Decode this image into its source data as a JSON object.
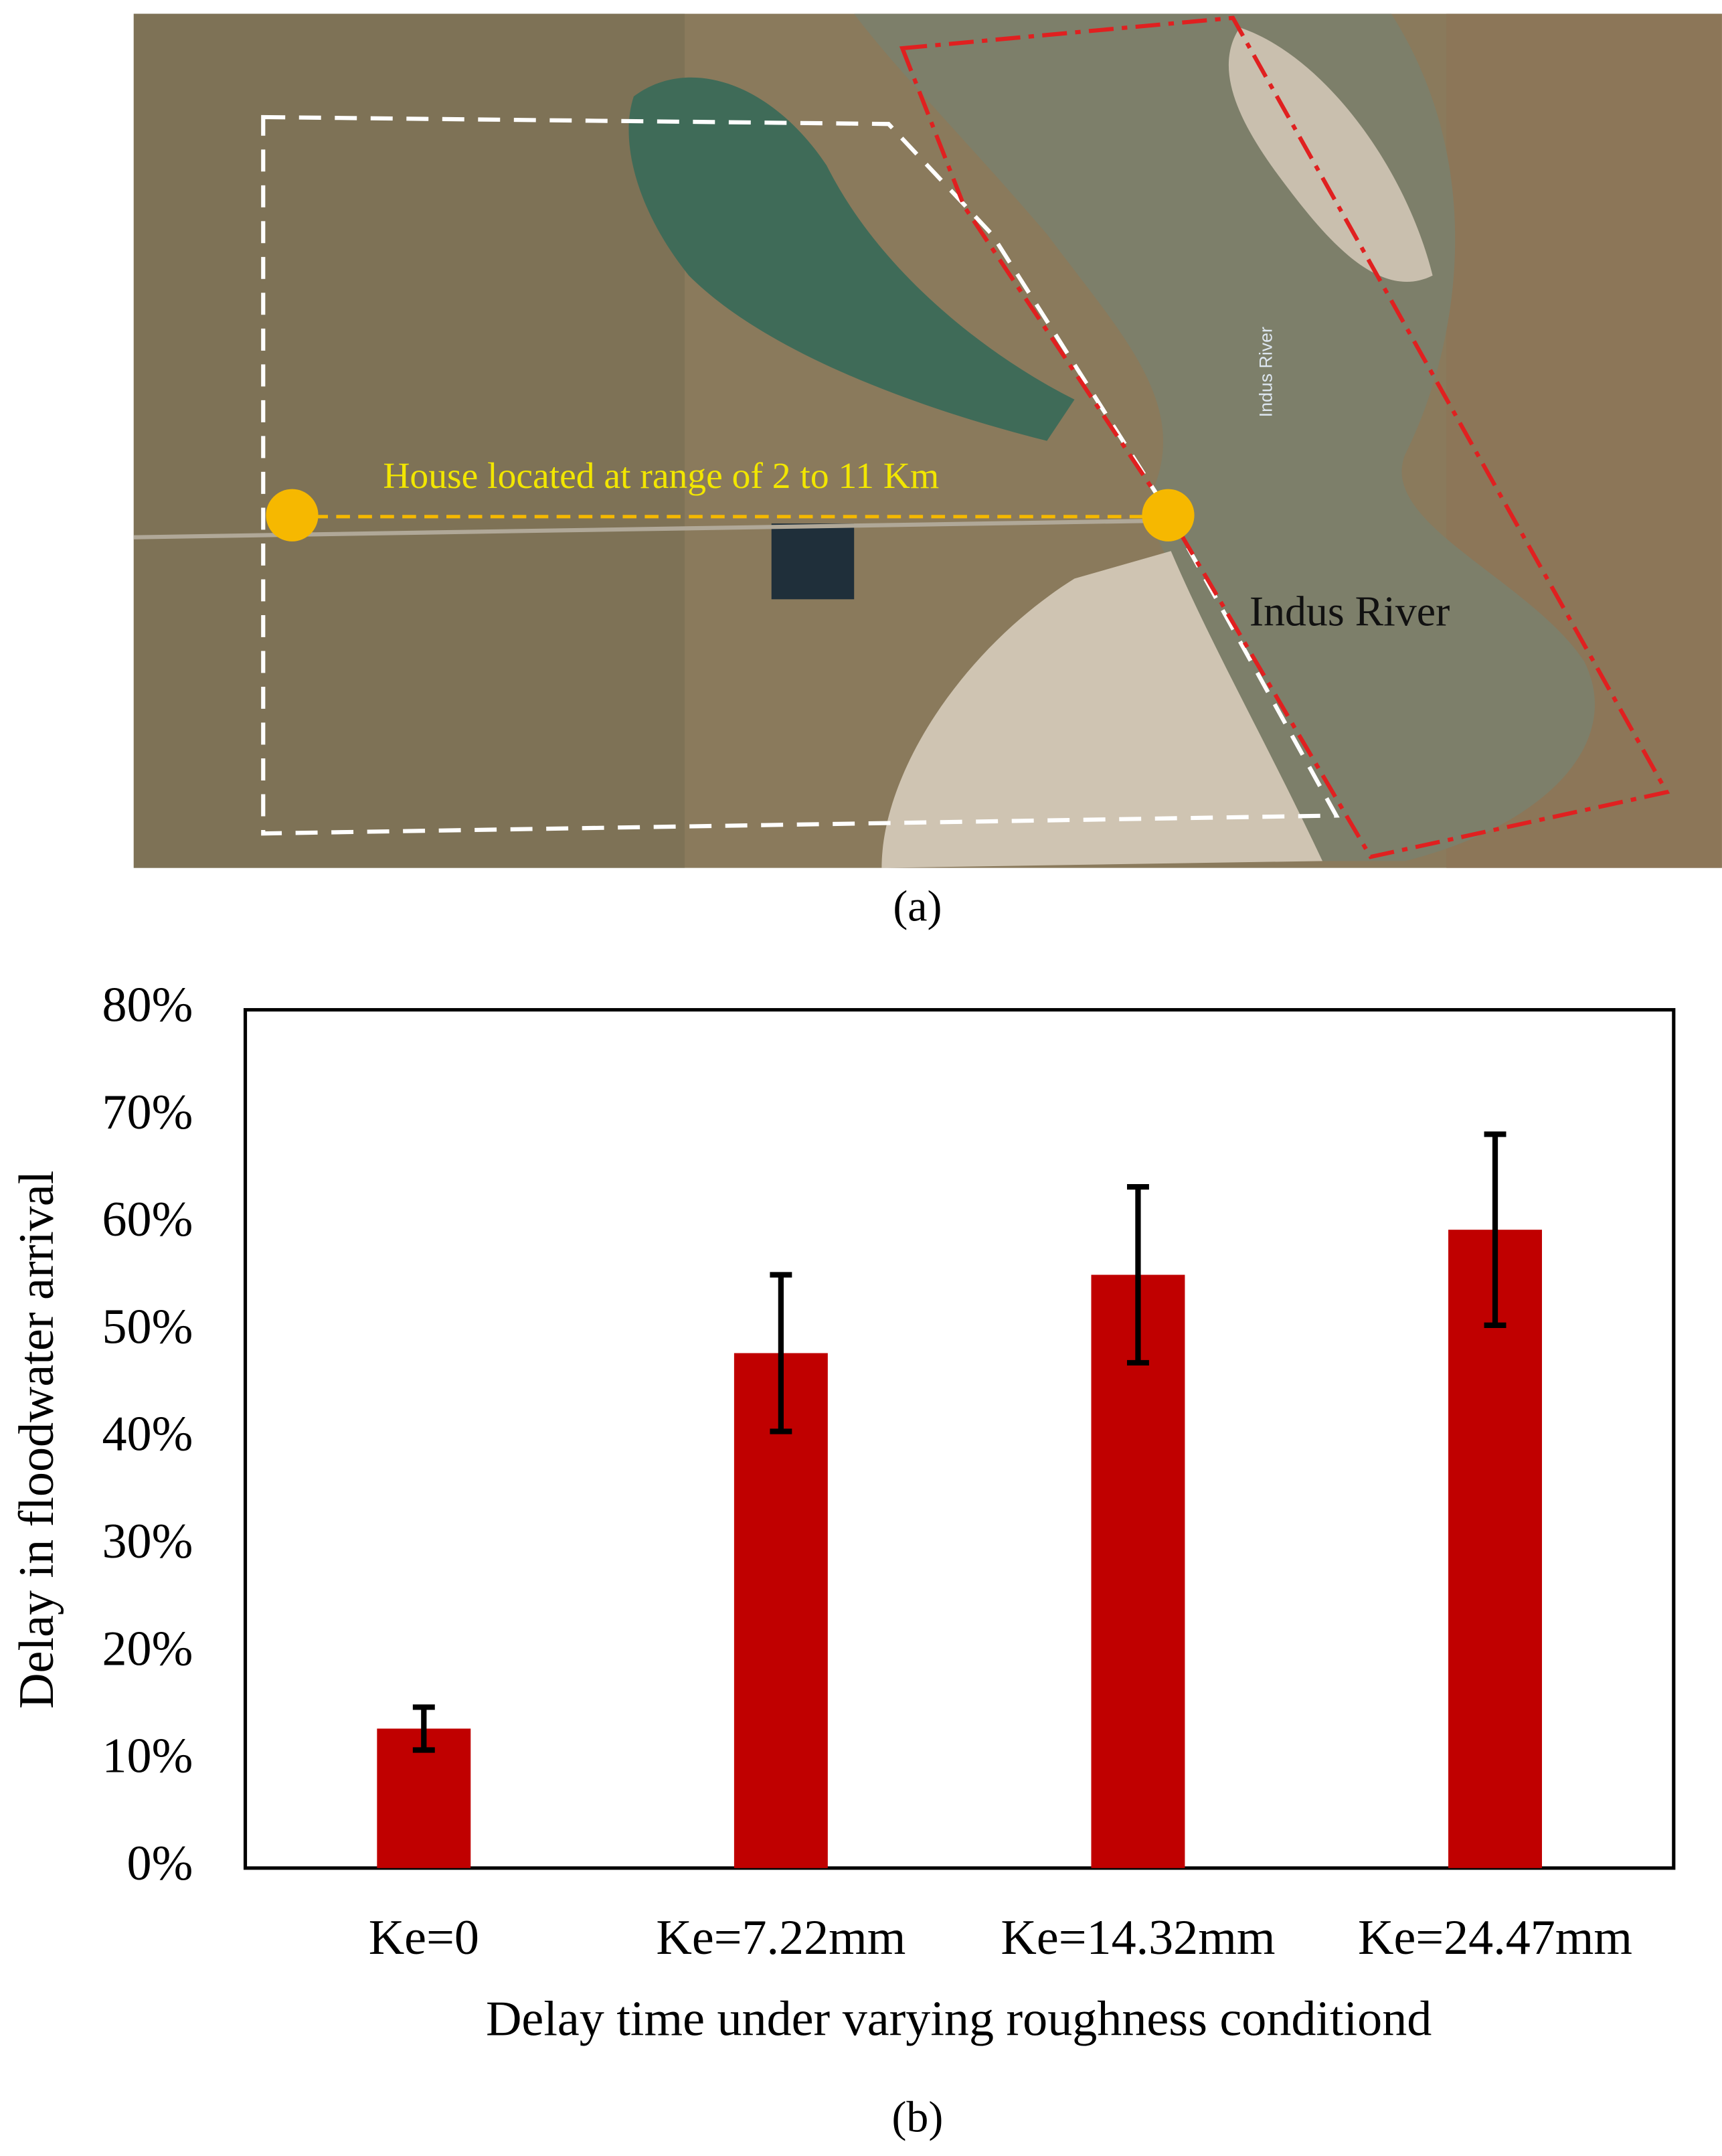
{
  "map": {
    "house_label": "House located at range of 2 to 11 Km",
    "river_label": "Indus River",
    "river_label_small": "Indus River",
    "caption": "(a)"
  },
  "chart_data": {
    "type": "bar",
    "caption": "(b)",
    "x_label": "Delay time under varying roughness conditiond",
    "y_label": "Delay in floodwater arrival",
    "categories": [
      "Ke=0",
      "Ke=7.22mm",
      "Ke=14.32mm",
      "Ke=24.47mm"
    ],
    "values": [
      13,
      48,
      55.3,
      59.5
    ],
    "errors": [
      2,
      7.3,
      8.2,
      8.9
    ],
    "color": "#c00000",
    "ylim": [
      0,
      80
    ],
    "yticks": [
      {
        "value": 0,
        "label": "0%"
      },
      {
        "value": 10,
        "label": "10%"
      },
      {
        "value": 20,
        "label": "20%"
      },
      {
        "value": 30,
        "label": "30%"
      },
      {
        "value": 40,
        "label": "40%"
      },
      {
        "value": 50,
        "label": "50%"
      },
      {
        "value": 60,
        "label": "60%"
      },
      {
        "value": 70,
        "label": "70%"
      },
      {
        "value": 80,
        "label": "80%"
      }
    ],
    "grid": false
  }
}
